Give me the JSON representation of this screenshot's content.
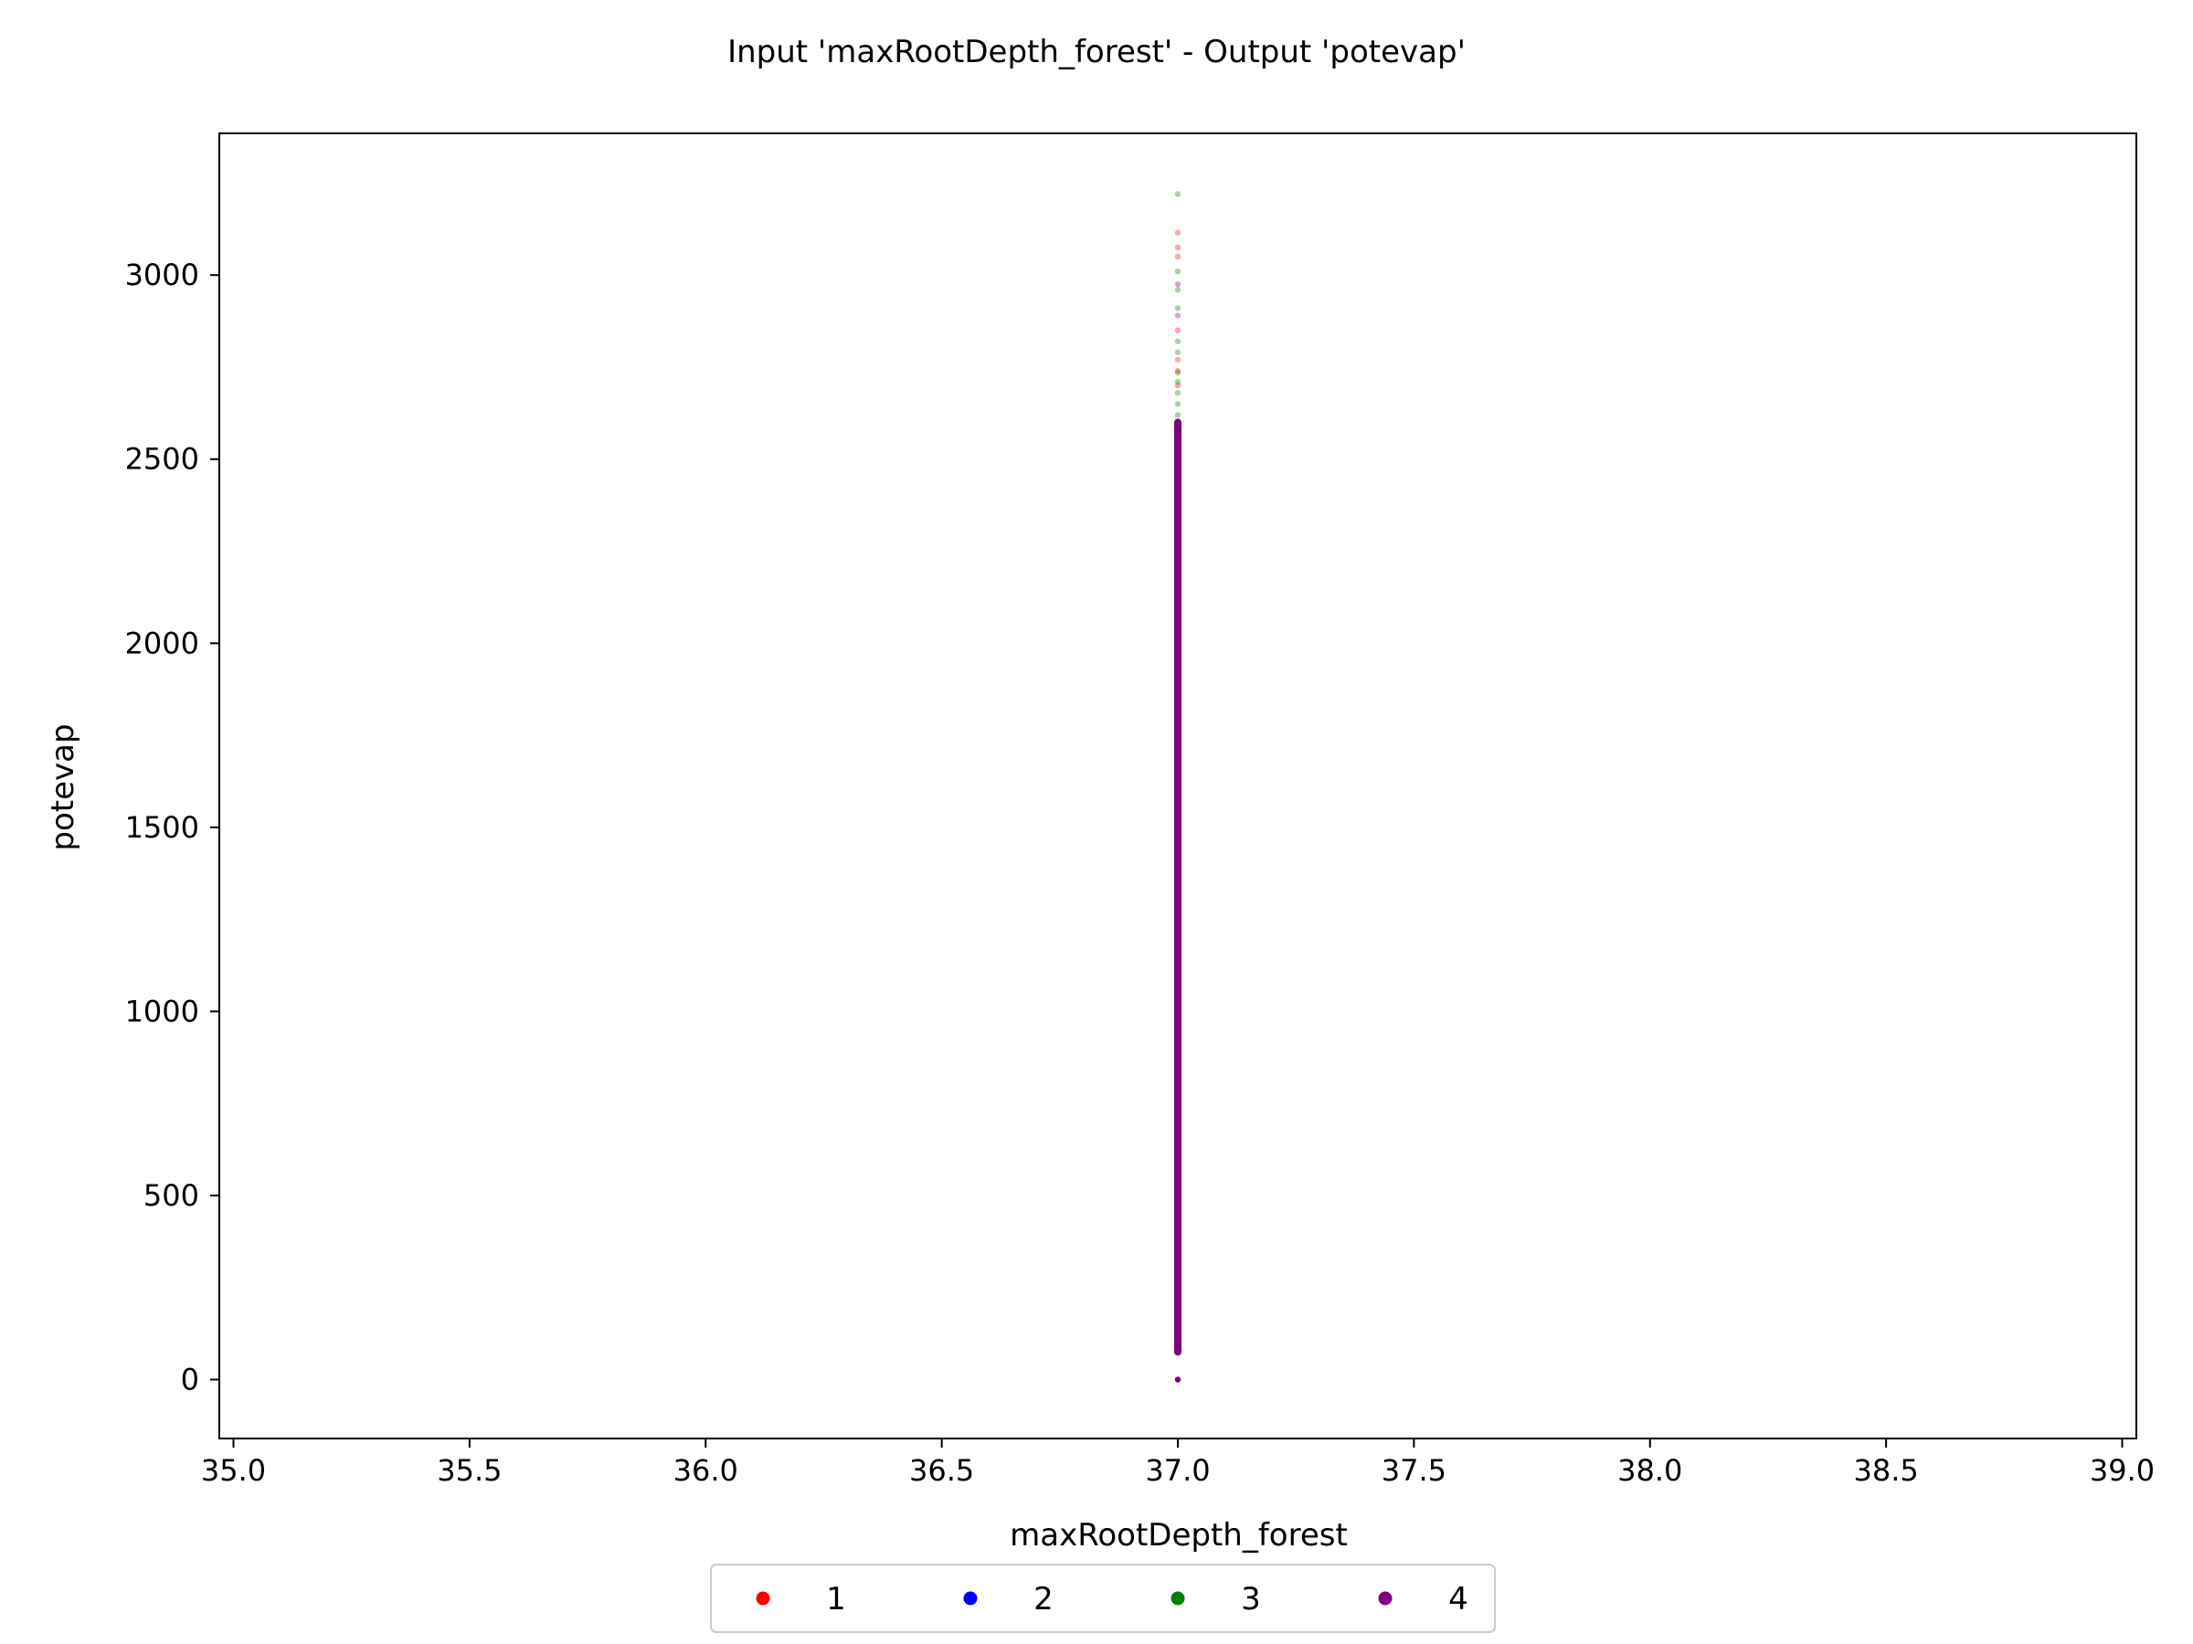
{
  "chart_data": {
    "type": "scatter",
    "title": "Input 'maxRootDepth_forest' - Output 'potevap'",
    "xlabel": "maxRootDepth_forest",
    "ylabel": "potevap",
    "xlim": [
      34.97,
      39.03
    ],
    "ylim": [
      -160,
      3385
    ],
    "xticks": [
      "35.0",
      "35.5",
      "36.0",
      "36.5",
      "37.0",
      "37.5",
      "38.0",
      "38.5",
      "39.0"
    ],
    "xtick_values": [
      35.0,
      35.5,
      36.0,
      36.5,
      37.0,
      37.5,
      38.0,
      38.5,
      39.0
    ],
    "yticks": [
      "0",
      "500",
      "1000",
      "1500",
      "2000",
      "2500",
      "3000"
    ],
    "ytick_values": [
      0,
      500,
      1000,
      1500,
      2000,
      2500,
      3000
    ],
    "grid": false,
    "legend_position": "bottom-center",
    "series": [
      {
        "name": "1",
        "color": "#ff0000",
        "points": [
          {
            "x": 37.0,
            "y": 940
          },
          {
            "x": 37.0,
            "y": 955
          },
          {
            "x": 37.0,
            "y": 2700
          },
          {
            "x": 37.0,
            "y": 2740
          },
          {
            "x": 37.0,
            "y": 2770
          },
          {
            "x": 37.0,
            "y": 2850
          },
          {
            "x": 37.0,
            "y": 3050
          },
          {
            "x": 37.0,
            "y": 3075
          },
          {
            "x": 37.0,
            "y": 3115
          }
        ]
      },
      {
        "name": "2",
        "color": "#0000ff",
        "points": []
      },
      {
        "name": "3",
        "color": "#008000",
        "points": [
          {
            "x": 37.0,
            "y": 985
          },
          {
            "x": 37.0,
            "y": 1010
          },
          {
            "x": 37.0,
            "y": 2620
          },
          {
            "x": 37.0,
            "y": 2650
          },
          {
            "x": 37.0,
            "y": 2680
          },
          {
            "x": 37.0,
            "y": 2710
          },
          {
            "x": 37.0,
            "y": 2735
          },
          {
            "x": 37.0,
            "y": 2790
          },
          {
            "x": 37.0,
            "y": 2820
          },
          {
            "x": 37.0,
            "y": 2910
          },
          {
            "x": 37.0,
            "y": 2960
          },
          {
            "x": 37.0,
            "y": 3010
          },
          {
            "x": 37.0,
            "y": 3220
          }
        ]
      },
      {
        "name": "4",
        "color": "#800080",
        "points": [
          {
            "x": 37.0,
            "y": 0
          },
          {
            "x": 37.0,
            "y": 75
          },
          {
            "x": 37.0,
            "y": 200
          },
          {
            "x": 37.0,
            "y": 500
          },
          {
            "x": 37.0,
            "y": 800
          },
          {
            "x": 37.0,
            "y": 1050
          },
          {
            "x": 37.0,
            "y": 1080
          },
          {
            "x": 37.0,
            "y": 1500
          },
          {
            "x": 37.0,
            "y": 2000
          },
          {
            "x": 37.0,
            "y": 2400
          },
          {
            "x": 37.0,
            "y": 2550
          },
          {
            "x": 37.0,
            "y": 2890
          },
          {
            "x": 37.0,
            "y": 2975
          }
        ],
        "dense_range": [
          75,
          2600
        ]
      }
    ]
  }
}
